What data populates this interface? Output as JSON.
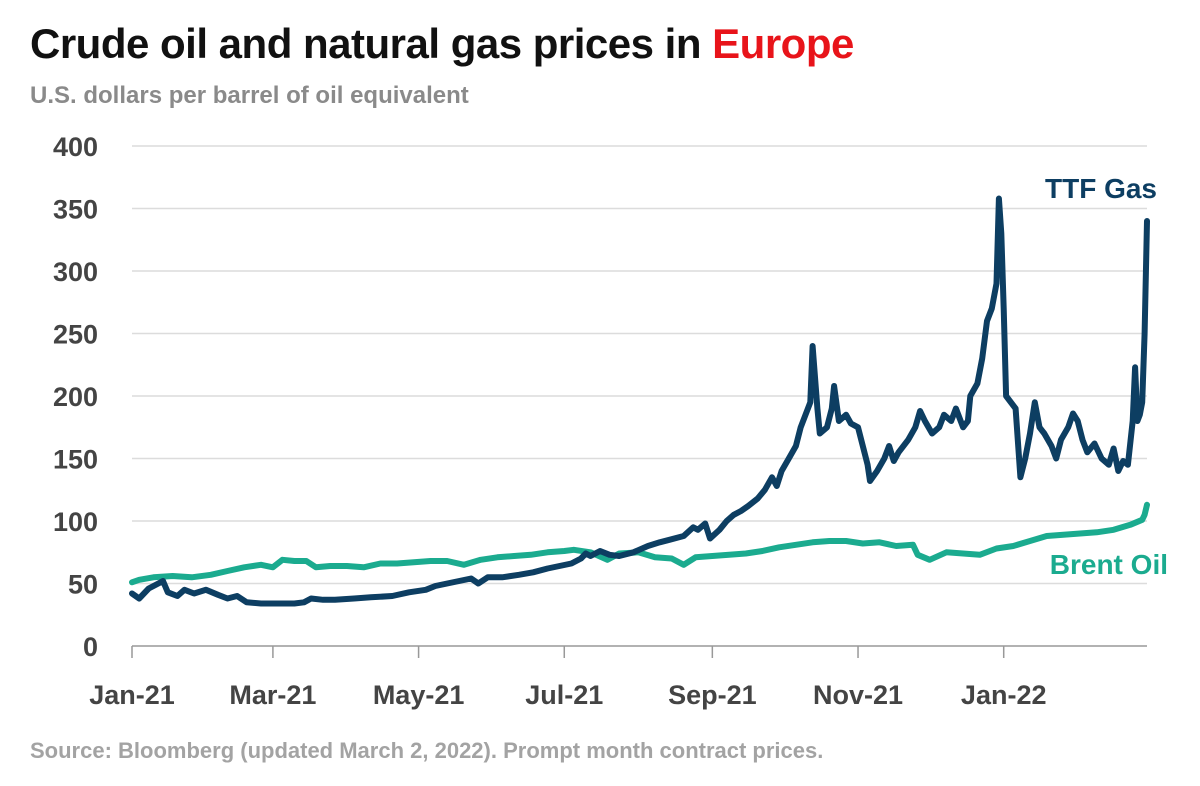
{
  "header": {
    "title_prefix": "Crude oil and natural gas prices in ",
    "title_highlight": "Europe",
    "subtitle": "U.S. dollars per barrel of oil equivalent"
  },
  "footer": {
    "source": "Source: Bloomberg (updated March 2, 2022). Prompt month contract prices."
  },
  "colors": {
    "ttf": "#0d3e62",
    "brent": "#1bab8f",
    "highlight": "#e8141a",
    "grid": "#dcdcdc",
    "axis": "#999999"
  },
  "chart_data": {
    "type": "line",
    "title": "Crude oil and natural gas prices in Europe",
    "subtitle": "U.S. dollars per barrel of oil equivalent",
    "ylim": [
      0,
      400
    ],
    "yticks": [
      "400",
      "350",
      "300",
      "250",
      "200",
      "150",
      "100",
      "50",
      "0"
    ],
    "xlim": [
      "2021-01-01",
      "2022-03-02"
    ],
    "xticks": [
      {
        "date": "2021-01-01",
        "label": "Jan-21"
      },
      {
        "date": "2021-03-01",
        "label": "Mar-21"
      },
      {
        "date": "2021-05-01",
        "label": "May-21"
      },
      {
        "date": "2021-07-01",
        "label": "Jul-21"
      },
      {
        "date": "2021-09-01",
        "label": "Sep-21"
      },
      {
        "date": "2021-11-01",
        "label": "Nov-21"
      },
      {
        "date": "2022-01-01",
        "label": "Jan-22"
      }
    ],
    "grid": true,
    "series": [
      {
        "name": "TTF Gas",
        "color": "#0d3e62",
        "points": [
          [
            "2021-01-01",
            42
          ],
          [
            "2021-01-04",
            38
          ],
          [
            "2021-01-08",
            46
          ],
          [
            "2021-01-12",
            50
          ],
          [
            "2021-01-14",
            52
          ],
          [
            "2021-01-16",
            43
          ],
          [
            "2021-01-20",
            40
          ],
          [
            "2021-01-23",
            45
          ],
          [
            "2021-01-27",
            42
          ],
          [
            "2021-02-01",
            45
          ],
          [
            "2021-02-06",
            41
          ],
          [
            "2021-02-10",
            38
          ],
          [
            "2021-02-14",
            40
          ],
          [
            "2021-02-18",
            35
          ],
          [
            "2021-02-24",
            34
          ],
          [
            "2021-03-03",
            34
          ],
          [
            "2021-03-10",
            34
          ],
          [
            "2021-03-14",
            35
          ],
          [
            "2021-03-17",
            38
          ],
          [
            "2021-03-22",
            37
          ],
          [
            "2021-03-27",
            37
          ],
          [
            "2021-04-04",
            38
          ],
          [
            "2021-04-11",
            39
          ],
          [
            "2021-04-20",
            40
          ],
          [
            "2021-04-27",
            43
          ],
          [
            "2021-05-04",
            45
          ],
          [
            "2021-05-08",
            48
          ],
          [
            "2021-05-13",
            50
          ],
          [
            "2021-05-18",
            52
          ],
          [
            "2021-05-23",
            54
          ],
          [
            "2021-05-26",
            50
          ],
          [
            "2021-05-30",
            55
          ],
          [
            "2021-06-05",
            55
          ],
          [
            "2021-06-12",
            57
          ],
          [
            "2021-06-18",
            59
          ],
          [
            "2021-06-24",
            62
          ],
          [
            "2021-06-29",
            64
          ],
          [
            "2021-07-04",
            66
          ],
          [
            "2021-07-08",
            70
          ],
          [
            "2021-07-10",
            74
          ],
          [
            "2021-07-12",
            72
          ],
          [
            "2021-07-16",
            76
          ],
          [
            "2021-07-20",
            73
          ],
          [
            "2021-07-24",
            72
          ],
          [
            "2021-07-30",
            75
          ],
          [
            "2021-08-05",
            80
          ],
          [
            "2021-08-10",
            83
          ],
          [
            "2021-08-14",
            85
          ],
          [
            "2021-08-20",
            88
          ],
          [
            "2021-08-24",
            95
          ],
          [
            "2021-08-26",
            93
          ],
          [
            "2021-08-29",
            98
          ],
          [
            "2021-08-31",
            86
          ],
          [
            "2021-09-04",
            93
          ],
          [
            "2021-09-07",
            100
          ],
          [
            "2021-09-10",
            105
          ],
          [
            "2021-09-13",
            108
          ],
          [
            "2021-09-16",
            112
          ],
          [
            "2021-09-20",
            118
          ],
          [
            "2021-09-23",
            125
          ],
          [
            "2021-09-26",
            135
          ],
          [
            "2021-09-28",
            128
          ],
          [
            "2021-09-30",
            140
          ],
          [
            "2021-10-03",
            150
          ],
          [
            "2021-10-06",
            160
          ],
          [
            "2021-10-08",
            175
          ],
          [
            "2021-10-10",
            185
          ],
          [
            "2021-10-12",
            195
          ],
          [
            "2021-10-13",
            240
          ],
          [
            "2021-10-15",
            190
          ],
          [
            "2021-10-16",
            170
          ],
          [
            "2021-10-19",
            175
          ],
          [
            "2021-10-21",
            190
          ],
          [
            "2021-10-22",
            208
          ],
          [
            "2021-10-24",
            180
          ],
          [
            "2021-10-27",
            185
          ],
          [
            "2021-10-29",
            178
          ],
          [
            "2021-11-01",
            175
          ],
          [
            "2021-11-03",
            160
          ],
          [
            "2021-11-05",
            145
          ],
          [
            "2021-11-06",
            132
          ],
          [
            "2021-11-09",
            140
          ],
          [
            "2021-11-12",
            150
          ],
          [
            "2021-11-14",
            160
          ],
          [
            "2021-11-16",
            148
          ],
          [
            "2021-11-18",
            155
          ],
          [
            "2021-11-22",
            165
          ],
          [
            "2021-11-25",
            175
          ],
          [
            "2021-11-27",
            188
          ],
          [
            "2021-11-29",
            180
          ],
          [
            "2021-12-02",
            170
          ],
          [
            "2021-12-05",
            175
          ],
          [
            "2021-12-07",
            185
          ],
          [
            "2021-12-10",
            180
          ],
          [
            "2021-12-12",
            190
          ],
          [
            "2021-12-15",
            175
          ],
          [
            "2021-12-17",
            180
          ],
          [
            "2021-12-18",
            200
          ],
          [
            "2021-12-21",
            210
          ],
          [
            "2021-12-23",
            230
          ],
          [
            "2021-12-25",
            260
          ],
          [
            "2021-12-27",
            270
          ],
          [
            "2021-12-29",
            290
          ],
          [
            "2021-12-30",
            358
          ],
          [
            "2021-12-31",
            330
          ],
          [
            "2022-01-01",
            270
          ],
          [
            "2022-01-02",
            200
          ],
          [
            "2022-01-06",
            190
          ],
          [
            "2022-01-08",
            135
          ],
          [
            "2022-01-10",
            150
          ],
          [
            "2022-01-12",
            170
          ],
          [
            "2022-01-14",
            195
          ],
          [
            "2022-01-16",
            175
          ],
          [
            "2022-01-18",
            170
          ],
          [
            "2022-01-21",
            160
          ],
          [
            "2022-01-23",
            150
          ],
          [
            "2022-01-25",
            165
          ],
          [
            "2022-01-28",
            175
          ],
          [
            "2022-01-30",
            186
          ],
          [
            "2022-02-01",
            180
          ],
          [
            "2022-02-03",
            165
          ],
          [
            "2022-02-05",
            155
          ],
          [
            "2022-02-08",
            162
          ],
          [
            "2022-02-11",
            150
          ],
          [
            "2022-02-14",
            145
          ],
          [
            "2022-02-16",
            158
          ],
          [
            "2022-02-18",
            140
          ],
          [
            "2022-02-20",
            148
          ],
          [
            "2022-02-22",
            145
          ],
          [
            "2022-02-24",
            180
          ],
          [
            "2022-02-25",
            223
          ],
          [
            "2022-02-26",
            180
          ],
          [
            "2022-02-27",
            185
          ],
          [
            "2022-02-28",
            195
          ],
          [
            "2022-03-01",
            250
          ],
          [
            "2022-03-02",
            340
          ]
        ]
      },
      {
        "name": "Brent Oil",
        "color": "#1bab8f",
        "points": [
          [
            "2021-01-01",
            51
          ],
          [
            "2021-01-04",
            53
          ],
          [
            "2021-01-10",
            55
          ],
          [
            "2021-01-18",
            56
          ],
          [
            "2021-01-26",
            55
          ],
          [
            "2021-02-03",
            57
          ],
          [
            "2021-02-10",
            60
          ],
          [
            "2021-02-17",
            63
          ],
          [
            "2021-02-24",
            65
          ],
          [
            "2021-03-01",
            63
          ],
          [
            "2021-03-05",
            69
          ],
          [
            "2021-03-10",
            68
          ],
          [
            "2021-03-15",
            68
          ],
          [
            "2021-03-19",
            63
          ],
          [
            "2021-03-25",
            64
          ],
          [
            "2021-04-01",
            64
          ],
          [
            "2021-04-08",
            63
          ],
          [
            "2021-04-15",
            66
          ],
          [
            "2021-04-22",
            66
          ],
          [
            "2021-04-29",
            67
          ],
          [
            "2021-05-06",
            68
          ],
          [
            "2021-05-13",
            68
          ],
          [
            "2021-05-20",
            65
          ],
          [
            "2021-05-27",
            69
          ],
          [
            "2021-06-03",
            71
          ],
          [
            "2021-06-10",
            72
          ],
          [
            "2021-06-17",
            73
          ],
          [
            "2021-06-24",
            75
          ],
          [
            "2021-07-01",
            76
          ],
          [
            "2021-07-05",
            77
          ],
          [
            "2021-07-12",
            75
          ],
          [
            "2021-07-19",
            69
          ],
          [
            "2021-07-24",
            74
          ],
          [
            "2021-08-01",
            75
          ],
          [
            "2021-08-08",
            71
          ],
          [
            "2021-08-15",
            70
          ],
          [
            "2021-08-20",
            65
          ],
          [
            "2021-08-25",
            71
          ],
          [
            "2021-09-01",
            72
          ],
          [
            "2021-09-08",
            73
          ],
          [
            "2021-09-15",
            74
          ],
          [
            "2021-09-22",
            76
          ],
          [
            "2021-09-29",
            79
          ],
          [
            "2021-10-06",
            81
          ],
          [
            "2021-10-13",
            83
          ],
          [
            "2021-10-20",
            84
          ],
          [
            "2021-10-27",
            84
          ],
          [
            "2021-11-03",
            82
          ],
          [
            "2021-11-10",
            83
          ],
          [
            "2021-11-17",
            80
          ],
          [
            "2021-11-24",
            81
          ],
          [
            "2021-11-26",
            73
          ],
          [
            "2021-12-01",
            69
          ],
          [
            "2021-12-08",
            75
          ],
          [
            "2021-12-15",
            74
          ],
          [
            "2021-12-22",
            73
          ],
          [
            "2021-12-29",
            78
          ],
          [
            "2022-01-05",
            80
          ],
          [
            "2022-01-12",
            84
          ],
          [
            "2022-01-19",
            88
          ],
          [
            "2022-01-26",
            89
          ],
          [
            "2022-02-02",
            90
          ],
          [
            "2022-02-09",
            91
          ],
          [
            "2022-02-16",
            93
          ],
          [
            "2022-02-23",
            97
          ],
          [
            "2022-02-28",
            101
          ],
          [
            "2022-03-01",
            105
          ],
          [
            "2022-03-02",
            113
          ]
        ]
      }
    ]
  }
}
